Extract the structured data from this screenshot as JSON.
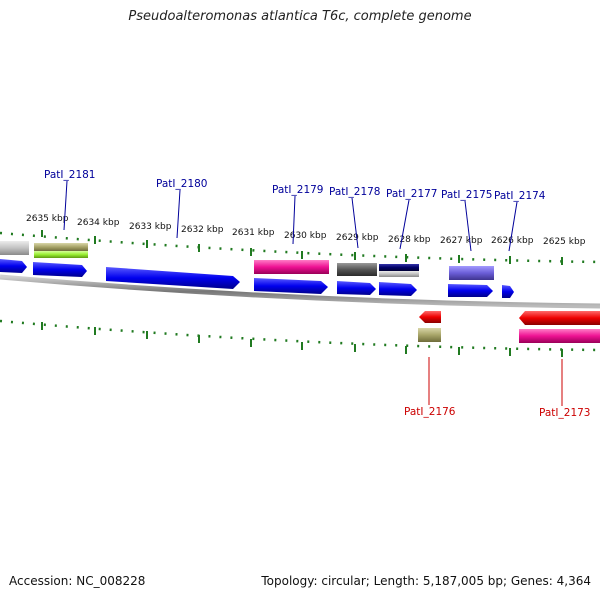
{
  "title": "Pseudoalteromonas atlantica T6c, complete genome",
  "accession_label": "Accession: NC_008228",
  "summary_label": "Topology: circular; Length: 5,187,005 bp; Genes: 4,364",
  "ruler": {
    "ticks": [
      "2635 kbp",
      "2634 kbp",
      "2633 kbp",
      "2632 kbp",
      "2631 kbp",
      "2630 kbp",
      "2629 kbp",
      "2628 kbp",
      "2627 kbp",
      "2626 kbp",
      "2625 kbp"
    ]
  },
  "genes_forward": [
    {
      "name": "PatI_2181"
    },
    {
      "name": "PatI_2180"
    },
    {
      "name": "PatI_2179"
    },
    {
      "name": "PatI_2178"
    },
    {
      "name": "PatI_2177"
    },
    {
      "name": "PatI_2175"
    },
    {
      "name": "PatI_2174"
    }
  ],
  "genes_reverse": [
    {
      "name": "PatI_2176"
    },
    {
      "name": "PatI_2173"
    }
  ],
  "colors": {
    "forward_label": "#00009a",
    "reverse_label": "#cc0000",
    "cds_blue": "#0000ee",
    "reverse_red": "#ee0000",
    "magenta": "#ee1193",
    "dark_grey": "#555555",
    "navy": "#000066",
    "lavender": "#6b5ed8",
    "olive": "#a7a468",
    "lime": "#99ee33",
    "light_grey": "#c2c2c2",
    "tick_green": "#207a20",
    "backbone": "#777777"
  }
}
